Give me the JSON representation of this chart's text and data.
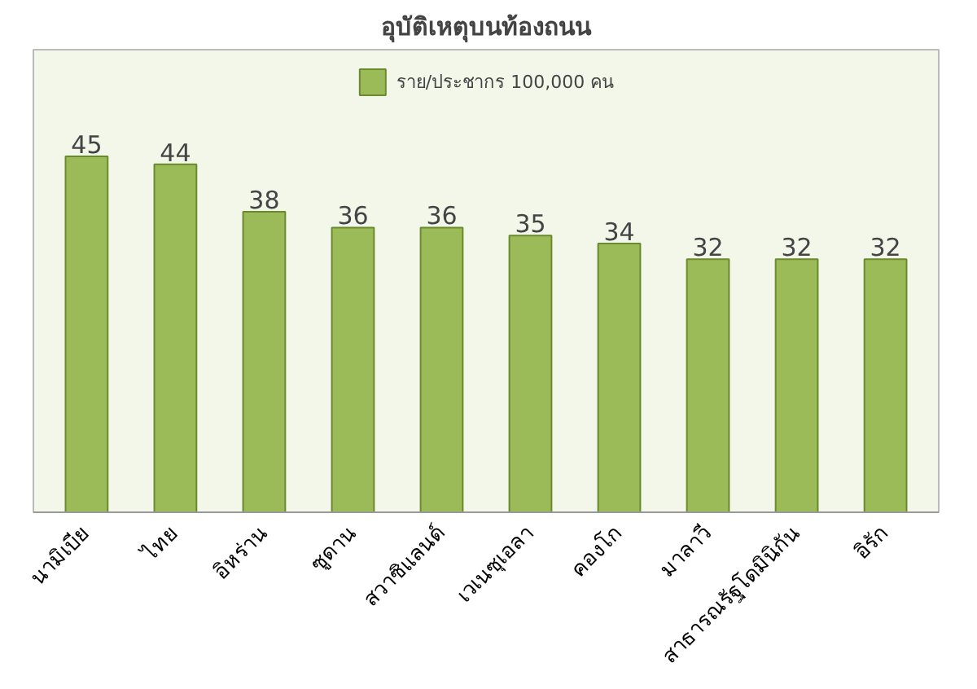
{
  "chart_data": {
    "type": "bar",
    "title": "อุบัติเหตุบนท้องถนน",
    "categories": [
      "นามิเบีย",
      "ไทย",
      "อิหร่าน",
      "ซูดาน",
      "สวาซิแลนด์",
      "เวเนซุเอลา",
      "คองโก",
      "มาลาวี",
      "สาธารณรัฐโดมินิกัน",
      "อิรัก"
    ],
    "series": [
      {
        "name": "ราย/ประชากร 100,000 คน",
        "color": "#9bbb59",
        "values": [
          45,
          44,
          38,
          36,
          36,
          35,
          34,
          32,
          32,
          32
        ]
      }
    ],
    "data_labels": true,
    "legend": "top",
    "grid": false
  }
}
